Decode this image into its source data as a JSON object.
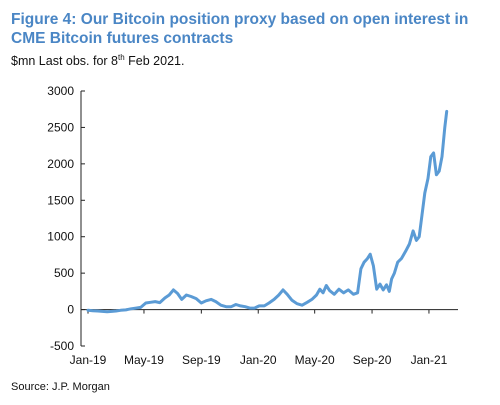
{
  "title": "Figure 4: Our Bitcoin position proxy based on open interest in CME Bitcoin futures contracts",
  "subtitle": {
    "unit": "$mn",
    "text_before": " Last obs. for 8",
    "superscript": "th",
    "text_after": " Feb 2021."
  },
  "source": "Source: J.P. Morgan",
  "colors": {
    "title": "#4a86c5",
    "line": "#5b9bd5",
    "axis": "#222222"
  },
  "chart_data": {
    "type": "line",
    "title": "Figure 4: Our Bitcoin position proxy based on open interest in CME Bitcoin futures contracts",
    "xlabel": "",
    "ylabel": "",
    "ylim": [
      -500,
      3000
    ],
    "xlim": [
      "2019-01-01",
      "2021-02-28"
    ],
    "grid": false,
    "legend": "none",
    "yticks": [
      -500,
      0,
      500,
      1000,
      1500,
      2000,
      2500,
      3000
    ],
    "xticks": [
      {
        "date": "2019-01-01",
        "label": "Jan-19"
      },
      {
        "date": "2019-05-01",
        "label": "May-19"
      },
      {
        "date": "2019-09-01",
        "label": "Sep-19"
      },
      {
        "date": "2020-01-01",
        "label": "Jan-20"
      },
      {
        "date": "2020-05-01",
        "label": "May-20"
      },
      {
        "date": "2020-09-01",
        "label": "Sep-20"
      },
      {
        "date": "2021-01-01",
        "label": "Jan-21"
      }
    ],
    "series": [
      {
        "points": [
          [
            "2019-01-01",
            -10
          ],
          [
            "2019-01-11",
            -15
          ],
          [
            "2019-01-22",
            -20
          ],
          [
            "2019-02-01",
            -25
          ],
          [
            "2019-02-11",
            -30
          ],
          [
            "2019-02-21",
            -25
          ],
          [
            "2019-03-02",
            -20
          ],
          [
            "2019-03-12",
            -10
          ],
          [
            "2019-03-23",
            -5
          ],
          [
            "2019-04-03",
            10
          ],
          [
            "2019-04-14",
            20
          ],
          [
            "2019-04-24",
            30
          ],
          [
            "2019-05-05",
            90
          ],
          [
            "2019-05-15",
            100
          ],
          [
            "2019-05-25",
            110
          ],
          [
            "2019-06-04",
            95
          ],
          [
            "2019-06-15",
            160
          ],
          [
            "2019-06-24",
            200
          ],
          [
            "2019-07-03",
            270
          ],
          [
            "2019-07-12",
            220
          ],
          [
            "2019-07-21",
            140
          ],
          [
            "2019-07-31",
            200
          ],
          [
            "2019-08-10",
            180
          ],
          [
            "2019-08-21",
            150
          ],
          [
            "2019-09-01",
            90
          ],
          [
            "2019-09-11",
            120
          ],
          [
            "2019-09-22",
            140
          ],
          [
            "2019-10-02",
            110
          ],
          [
            "2019-10-13",
            60
          ],
          [
            "2019-10-24",
            40
          ],
          [
            "2019-11-04",
            40
          ],
          [
            "2019-11-14",
            70
          ],
          [
            "2019-11-24",
            50
          ],
          [
            "2019-12-04",
            40
          ],
          [
            "2019-12-14",
            20
          ],
          [
            "2019-12-24",
            20
          ],
          [
            "2020-01-03",
            50
          ],
          [
            "2020-01-14",
            50
          ],
          [
            "2020-01-24",
            90
          ],
          [
            "2020-02-04",
            140
          ],
          [
            "2020-02-14",
            200
          ],
          [
            "2020-02-23",
            270
          ],
          [
            "2020-03-03",
            210
          ],
          [
            "2020-03-13",
            130
          ],
          [
            "2020-03-24",
            80
          ],
          [
            "2020-04-04",
            60
          ],
          [
            "2020-04-15",
            100
          ],
          [
            "2020-04-25",
            140
          ],
          [
            "2020-05-05",
            200
          ],
          [
            "2020-05-12",
            280
          ],
          [
            "2020-05-19",
            230
          ],
          [
            "2020-05-26",
            330
          ],
          [
            "2020-06-02",
            260
          ],
          [
            "2020-06-12",
            210
          ],
          [
            "2020-06-22",
            280
          ],
          [
            "2020-07-02",
            230
          ],
          [
            "2020-07-12",
            270
          ],
          [
            "2020-07-23",
            210
          ],
          [
            "2020-08-01",
            230
          ],
          [
            "2020-08-08",
            560
          ],
          [
            "2020-08-15",
            650
          ],
          [
            "2020-08-22",
            700
          ],
          [
            "2020-08-28",
            760
          ],
          [
            "2020-09-04",
            600
          ],
          [
            "2020-09-11",
            280
          ],
          [
            "2020-09-18",
            350
          ],
          [
            "2020-09-25",
            270
          ],
          [
            "2020-10-02",
            340
          ],
          [
            "2020-10-08",
            250
          ],
          [
            "2020-10-13",
            420
          ],
          [
            "2020-10-19",
            500
          ],
          [
            "2020-10-26",
            650
          ],
          [
            "2020-11-03",
            700
          ],
          [
            "2020-11-12",
            800
          ],
          [
            "2020-11-20",
            900
          ],
          [
            "2020-11-28",
            1080
          ],
          [
            "2020-12-05",
            950
          ],
          [
            "2020-12-11",
            1000
          ],
          [
            "2020-12-17",
            1300
          ],
          [
            "2020-12-23",
            1600
          ],
          [
            "2020-12-30",
            1800
          ],
          [
            "2021-01-05",
            2100
          ],
          [
            "2021-01-11",
            2150
          ],
          [
            "2021-01-17",
            1850
          ],
          [
            "2021-01-23",
            1900
          ],
          [
            "2021-01-29",
            2100
          ],
          [
            "2021-02-04",
            2500
          ],
          [
            "2021-02-08",
            2720
          ]
        ]
      }
    ]
  }
}
